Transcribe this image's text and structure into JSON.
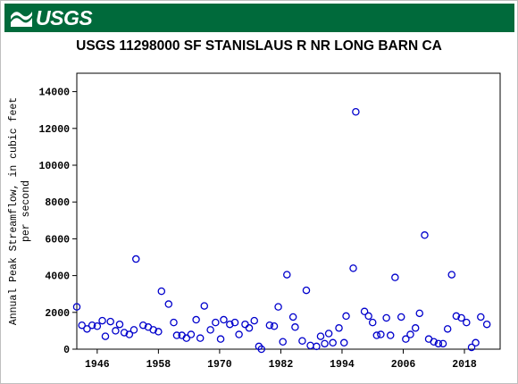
{
  "header": {
    "logo_text": "USGS",
    "logo_icon": "usgs-wave-icon",
    "brand_color": "#006a3b"
  },
  "chart_data": {
    "type": "scatter",
    "title": "USGS 11298000 SF STANISLAUS R NR LONG BARN CA",
    "xlabel": "",
    "ylabel_lines": [
      "Annual Peak Streamflow, in cubic feet",
      "per second"
    ],
    "xlim": [
      1942,
      2025
    ],
    "ylim": [
      0,
      15000
    ],
    "x_ticks": [
      1946,
      1958,
      1970,
      1982,
      1994,
      2006,
      2018
    ],
    "y_ticks": [
      0,
      2000,
      4000,
      6000,
      8000,
      10000,
      12000,
      14000
    ],
    "grid": false,
    "marker": "open-circle",
    "marker_color": "#0000cc",
    "points": [
      [
        1942,
        2300
      ],
      [
        1943,
        1300
      ],
      [
        1944,
        1100
      ],
      [
        1945,
        1300
      ],
      [
        1946,
        1250
      ],
      [
        1947,
        1550
      ],
      [
        1947.6,
        700
      ],
      [
        1948.6,
        1500
      ],
      [
        1949.6,
        1000
      ],
      [
        1950.4,
        1350
      ],
      [
        1951.3,
        900
      ],
      [
        1952.3,
        800
      ],
      [
        1953.2,
        1050
      ],
      [
        1953.6,
        4900
      ],
      [
        1955,
        1300
      ],
      [
        1956,
        1200
      ],
      [
        1957,
        1050
      ],
      [
        1958,
        950
      ],
      [
        1958.6,
        3150
      ],
      [
        1960,
        2450
      ],
      [
        1961,
        1450
      ],
      [
        1961.6,
        750
      ],
      [
        1962.6,
        750
      ],
      [
        1963.5,
        600
      ],
      [
        1964.4,
        800
      ],
      [
        1965.4,
        1600
      ],
      [
        1966.2,
        600
      ],
      [
        1967,
        2350
      ],
      [
        1968.2,
        1050
      ],
      [
        1969.2,
        1450
      ],
      [
        1970.2,
        550
      ],
      [
        1970.8,
        1600
      ],
      [
        1972,
        1350
      ],
      [
        1973,
        1450
      ],
      [
        1973.8,
        800
      ],
      [
        1975,
        1350
      ],
      [
        1975.8,
        1150
      ],
      [
        1976.8,
        1550
      ],
      [
        1977.7,
        150
      ],
      [
        1978.2,
        0
      ],
      [
        1979.8,
        1300
      ],
      [
        1980.7,
        1250
      ],
      [
        1981.5,
        2300
      ],
      [
        1982.4,
        400
      ],
      [
        1983.2,
        4050
      ],
      [
        1984.4,
        1750
      ],
      [
        1984.8,
        1200
      ],
      [
        1986.2,
        450
      ],
      [
        1987,
        3200
      ],
      [
        1987.8,
        200
      ],
      [
        1989,
        150
      ],
      [
        1989.8,
        700
      ],
      [
        1990.6,
        300
      ],
      [
        1991.4,
        850
      ],
      [
        1992.2,
        350
      ],
      [
        1993.4,
        1150
      ],
      [
        1994.4,
        350
      ],
      [
        1994.8,
        1800
      ],
      [
        1996.2,
        4400
      ],
      [
        1996.7,
        12900
      ],
      [
        1998.4,
        2050
      ],
      [
        1999.2,
        1800
      ],
      [
        2000,
        1450
      ],
      [
        2000.8,
        750
      ],
      [
        2001.6,
        800
      ],
      [
        2002.7,
        1700
      ],
      [
        2003.5,
        750
      ],
      [
        2004.4,
        3900
      ],
      [
        2005.6,
        1750
      ],
      [
        2006.5,
        550
      ],
      [
        2007.4,
        800
      ],
      [
        2008.4,
        1150
      ],
      [
        2009.2,
        1950
      ],
      [
        2010.2,
        6200
      ],
      [
        2011,
        550
      ],
      [
        2012,
        400
      ],
      [
        2012.9,
        300
      ],
      [
        2013.8,
        300
      ],
      [
        2014.7,
        1100
      ],
      [
        2015.5,
        4050
      ],
      [
        2016.4,
        1800
      ],
      [
        2017.4,
        1700
      ],
      [
        2018.4,
        1450
      ],
      [
        2019.4,
        100
      ],
      [
        2020.2,
        350
      ],
      [
        2021.2,
        1750
      ],
      [
        2022.4,
        1350
      ]
    ]
  }
}
